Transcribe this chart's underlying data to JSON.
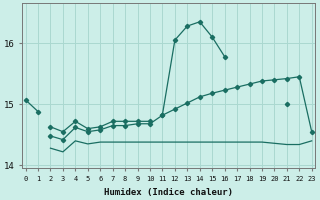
{
  "xlabel": "Humidex (Indice chaleur)",
  "background_color": "#cceee8",
  "grid_color": "#aad8d0",
  "line_color": "#1a6e62",
  "x_values": [
    0,
    1,
    2,
    3,
    4,
    5,
    6,
    7,
    8,
    9,
    10,
    11,
    12,
    13,
    14,
    15,
    16,
    17,
    18,
    19,
    20,
    21,
    22,
    23
  ],
  "line1": [
    15.07,
    14.88,
    null,
    null,
    null,
    null,
    null,
    null,
    null,
    null,
    null,
    14.83,
    16.05,
    16.28,
    16.35,
    16.1,
    15.78,
    null,
    null,
    null,
    null,
    15.0,
    null,
    null
  ],
  "line1b": [
    null,
    null,
    14.63,
    14.55,
    14.72,
    14.6,
    14.63,
    14.72,
    14.72,
    14.72,
    14.72,
    null,
    null,
    null,
    null,
    null,
    null,
    null,
    null,
    null,
    null,
    null,
    null,
    null
  ],
  "line2": [
    null,
    null,
    14.48,
    14.42,
    14.62,
    14.55,
    14.58,
    14.65,
    14.65,
    14.68,
    14.68,
    14.82,
    14.92,
    15.02,
    15.12,
    15.18,
    15.23,
    15.28,
    15.33,
    15.38,
    15.4,
    15.42,
    15.45,
    14.55
  ],
  "line3": [
    null,
    null,
    14.28,
    14.22,
    14.4,
    14.35,
    14.38,
    14.38,
    14.38,
    14.38,
    14.38,
    14.38,
    14.38,
    14.38,
    14.38,
    14.38,
    14.38,
    14.38,
    14.38,
    14.38,
    14.36,
    14.34,
    14.34,
    14.4
  ],
  "ylim": [
    13.95,
    16.65
  ],
  "xlim": [
    -0.3,
    23.3
  ],
  "yticks": [
    14,
    15,
    16
  ],
  "xticks": [
    0,
    1,
    2,
    3,
    4,
    5,
    6,
    7,
    8,
    9,
    10,
    11,
    12,
    13,
    14,
    15,
    16,
    17,
    18,
    19,
    20,
    21,
    22,
    23
  ]
}
